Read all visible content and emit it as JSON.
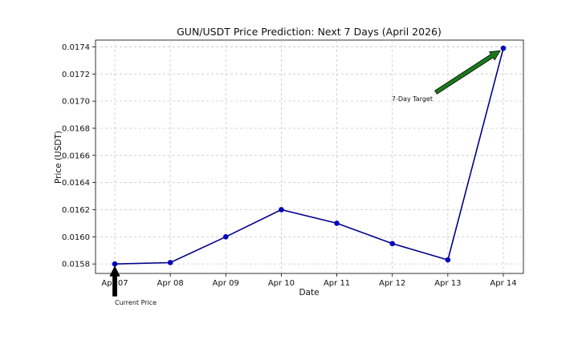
{
  "chart_data": {
    "type": "line",
    "title": "GUN/USDT Price Prediction: Next 7 Days (April 2026)",
    "xlabel": "Date",
    "ylabel": "Price (USDT)",
    "categories": [
      "Apr 07",
      "Apr 08",
      "Apr 09",
      "Apr 10",
      "Apr 11",
      "Apr 12",
      "Apr 13",
      "Apr 14"
    ],
    "series": [
      {
        "values": [
          0.0158,
          0.01581,
          0.016,
          0.0162,
          0.0161,
          0.01595,
          0.01583,
          0.01739
        ],
        "color": "#00008b",
        "marker_color": "#0000cd"
      }
    ],
    "yticks": [
      "0.0158",
      "0.0160",
      "0.0162",
      "0.0164",
      "0.0166",
      "0.0168",
      "0.0170",
      "0.0172",
      "0.0174"
    ],
    "ylim": [
      0.01573,
      0.01745
    ],
    "grid": true,
    "annotations": [
      {
        "text": "Current Price",
        "category": "Apr 07",
        "value": 0.0158,
        "arrow_color": "#000000"
      },
      {
        "text": "7-Day Target",
        "category": "Apr 14",
        "value": 0.01739,
        "arrow_color": "#1a7a1a"
      }
    ]
  }
}
